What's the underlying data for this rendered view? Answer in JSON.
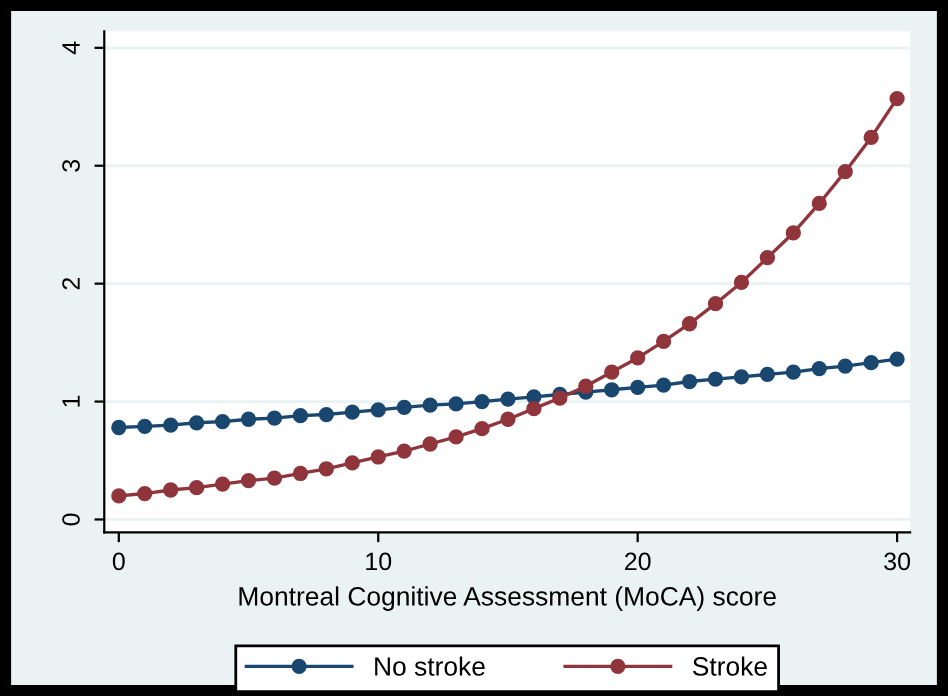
{
  "chart_data": {
    "type": "line",
    "xlabel": "Montreal Cognitive Assessment (MoCA) score",
    "x": [
      0,
      1,
      2,
      3,
      4,
      5,
      6,
      7,
      8,
      9,
      10,
      11,
      12,
      13,
      14,
      15,
      16,
      17,
      18,
      19,
      20,
      21,
      22,
      23,
      24,
      25,
      26,
      27,
      28,
      29,
      30
    ],
    "series": [
      {
        "name": "No stroke",
        "color": "#1a476f",
        "values": [
          0.78,
          0.79,
          0.8,
          0.82,
          0.83,
          0.85,
          0.86,
          0.88,
          0.89,
          0.91,
          0.93,
          0.95,
          0.97,
          0.98,
          1.0,
          1.02,
          1.04,
          1.06,
          1.08,
          1.1,
          1.12,
          1.14,
          1.17,
          1.19,
          1.21,
          1.23,
          1.25,
          1.28,
          1.3,
          1.33,
          1.36
        ]
      },
      {
        "name": "Stroke",
        "color": "#90353b",
        "values": [
          0.2,
          0.22,
          0.25,
          0.27,
          0.3,
          0.33,
          0.35,
          0.39,
          0.43,
          0.48,
          0.53,
          0.58,
          0.64,
          0.7,
          0.77,
          0.85,
          0.94,
          1.03,
          1.13,
          1.25,
          1.37,
          1.51,
          1.66,
          1.83,
          2.01,
          2.22,
          2.43,
          2.68,
          2.95,
          3.24,
          3.57
        ]
      }
    ],
    "xlim": [
      -0.56,
      30.5
    ],
    "ylim": [
      -0.11,
      4.14
    ],
    "xticks": [
      0,
      10,
      20,
      30
    ],
    "yticks": [
      0,
      1,
      2,
      3,
      4
    ],
    "grid": "y",
    "legend": "bottom",
    "marker": "circle",
    "line_style": "solid"
  }
}
